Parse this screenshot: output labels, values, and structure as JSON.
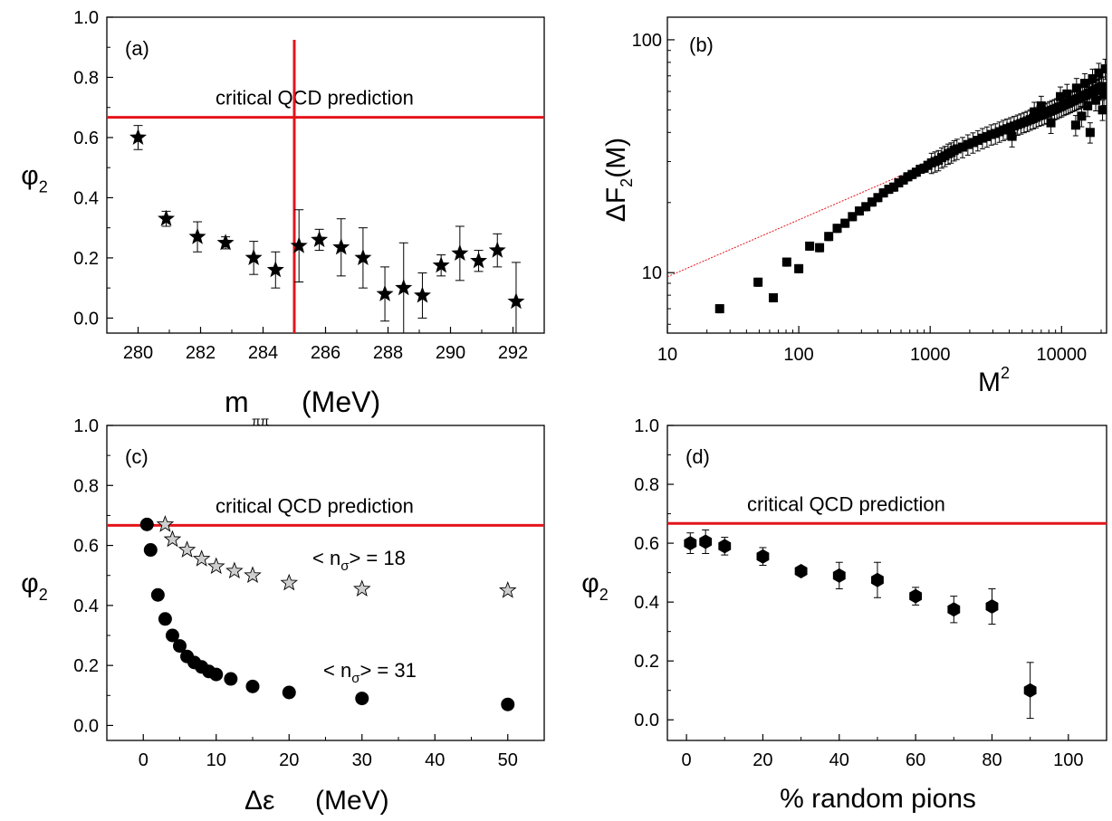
{
  "colors": {
    "critical_line": "#e4141b",
    "marker": "#000000",
    "open_star_fill": "#cfcfcf",
    "fit_line": "#e4141b"
  },
  "chart_data": [
    {
      "id": "a",
      "type": "scatter",
      "panel_label": "(a)",
      "xlabel_main": "m",
      "xlabel_sub": "ππ",
      "xlabel_unit": "(MeV)",
      "ylabel_main": "φ",
      "ylabel_sub": "2",
      "xlim": [
        279,
        293
      ],
      "ylim": [
        -0.05,
        1.0
      ],
      "xticks": [
        280,
        282,
        284,
        286,
        288,
        290,
        292
      ],
      "yticks": [
        0.0,
        0.2,
        0.4,
        0.6,
        0.8,
        1.0
      ],
      "ytick_labels": [
        "0.0",
        "0.2",
        "0.4",
        "0.6",
        "0.8",
        "1.0"
      ],
      "hline": {
        "y": 0.667,
        "label": "critical  QCD  prediction"
      },
      "vline": {
        "x": 285.0
      },
      "series": [
        {
          "marker": "star",
          "points": [
            {
              "x": 280.0,
              "y": 0.6,
              "err": 0.04
            },
            {
              "x": 280.9,
              "y": 0.33,
              "err": 0.025
            },
            {
              "x": 281.9,
              "y": 0.27,
              "err": 0.05
            },
            {
              "x": 282.8,
              "y": 0.25,
              "err": 0.02
            },
            {
              "x": 283.7,
              "y": 0.2,
              "err": 0.055
            },
            {
              "x": 284.4,
              "y": 0.16,
              "err": 0.06
            },
            {
              "x": 285.15,
              "y": 0.24,
              "err": 0.12
            },
            {
              "x": 285.8,
              "y": 0.26,
              "err": 0.035
            },
            {
              "x": 286.5,
              "y": 0.235,
              "err": 0.095
            },
            {
              "x": 287.2,
              "y": 0.2,
              "err": 0.1
            },
            {
              "x": 287.9,
              "y": 0.08,
              "err": 0.09
            },
            {
              "x": 288.5,
              "y": 0.1,
              "err": 0.15
            },
            {
              "x": 289.1,
              "y": 0.075,
              "err": 0.075
            },
            {
              "x": 289.7,
              "y": 0.175,
              "err": 0.035
            },
            {
              "x": 290.3,
              "y": 0.215,
              "err": 0.09
            },
            {
              "x": 290.9,
              "y": 0.19,
              "err": 0.035
            },
            {
              "x": 291.5,
              "y": 0.225,
              "err": 0.055
            },
            {
              "x": 292.1,
              "y": 0.055,
              "err": 0.13
            }
          ]
        }
      ]
    },
    {
      "id": "b",
      "type": "scatter",
      "scale": "log-log",
      "panel_label": "(b)",
      "xlabel_main": "M",
      "xlabel_sup": "2",
      "ylabel_main": "ΔF",
      "ylabel_sub": "2",
      "ylabel_tail": "(M)",
      "xlim": [
        10,
        22000
      ],
      "ylim": [
        5.5,
        125
      ],
      "xtick_labels": [
        "10",
        "100",
        "1000",
        "10000"
      ],
      "ytick_labels": [
        "10",
        "100"
      ],
      "fit_line": {
        "x": [
          10,
          22000
        ],
        "y": [
          9.6,
          63
        ]
      },
      "series": [
        {
          "marker": "square",
          "points": [
            {
              "x": 25,
              "y": 7.0
            },
            {
              "x": 49,
              "y": 9.1
            },
            {
              "x": 64,
              "y": 7.8
            },
            {
              "x": 81,
              "y": 11.1
            },
            {
              "x": 100,
              "y": 10.4
            },
            {
              "x": 121,
              "y": 13.0
            },
            {
              "x": 144,
              "y": 12.8
            },
            {
              "x": 169,
              "y": 14.3
            },
            {
              "x": 196,
              "y": 15.5
            },
            {
              "x": 225,
              "y": 16.3
            },
            {
              "x": 256,
              "y": 17.4
            },
            {
              "x": 289,
              "y": 18.4
            },
            {
              "x": 324,
              "y": 19.2
            },
            {
              "x": 361,
              "y": 20.1
            },
            {
              "x": 400,
              "y": 21.0
            },
            {
              "x": 441,
              "y": 22.0
            },
            {
              "x": 484,
              "y": 22.8
            },
            {
              "x": 529,
              "y": 23.3
            },
            {
              "x": 576,
              "y": 24.3
            },
            {
              "x": 625,
              "y": 25.0
            },
            {
              "x": 676,
              "y": 25.8
            },
            {
              "x": 729,
              "y": 26.4
            },
            {
              "x": 784,
              "y": 27.0
            },
            {
              "x": 841,
              "y": 27.8
            },
            {
              "x": 900,
              "y": 28.1
            },
            {
              "x": 961,
              "y": 28.9
            },
            {
              "x": 1024,
              "y": 29.6
            },
            {
              "x": 1089,
              "y": 30.0
            },
            {
              "x": 1156,
              "y": 30.4
            },
            {
              "x": 1225,
              "y": 31.2
            },
            {
              "x": 1296,
              "y": 31.7
            },
            {
              "x": 1369,
              "y": 32.4
            },
            {
              "x": 1444,
              "y": 32.8
            },
            {
              "x": 1521,
              "y": 33.5
            },
            {
              "x": 1600,
              "y": 34.0
            },
            {
              "x": 1764,
              "y": 34.6
            },
            {
              "x": 1936,
              "y": 35.5
            },
            {
              "x": 2116,
              "y": 36.2
            },
            {
              "x": 2304,
              "y": 37.0
            },
            {
              "x": 2500,
              "y": 37.8
            },
            {
              "x": 2704,
              "y": 38.4
            },
            {
              "x": 2916,
              "y": 39.2
            },
            {
              "x": 3136,
              "y": 39.6
            },
            {
              "x": 3364,
              "y": 40.3
            },
            {
              "x": 3600,
              "y": 41.0
            },
            {
              "x": 3844,
              "y": 41.5
            },
            {
              "x": 4096,
              "y": 42.1
            },
            {
              "x": 4356,
              "y": 42.6
            },
            {
              "x": 4624,
              "y": 43.2
            },
            {
              "x": 4900,
              "y": 43.7
            },
            {
              "x": 5184,
              "y": 44.3
            },
            {
              "x": 5476,
              "y": 44.8
            },
            {
              "x": 5776,
              "y": 45.4
            },
            {
              "x": 6084,
              "y": 46.0
            },
            {
              "x": 6400,
              "y": 46.5
            },
            {
              "x": 6724,
              "y": 47.2
            },
            {
              "x": 7056,
              "y": 47.6
            },
            {
              "x": 7396,
              "y": 48.2
            },
            {
              "x": 7744,
              "y": 48.6
            },
            {
              "x": 8100,
              "y": 49.3
            },
            {
              "x": 8464,
              "y": 49.8
            },
            {
              "x": 8836,
              "y": 50.3
            },
            {
              "x": 9216,
              "y": 50.8
            },
            {
              "x": 9604,
              "y": 51.4
            },
            {
              "x": 10000,
              "y": 51.8
            },
            {
              "x": 10404,
              "y": 52.5
            },
            {
              "x": 10816,
              "y": 53.0
            },
            {
              "x": 11236,
              "y": 53.4
            },
            {
              "x": 11664,
              "y": 54.0
            },
            {
              "x": 12100,
              "y": 54.6
            },
            {
              "x": 12544,
              "y": 55.0
            },
            {
              "x": 12996,
              "y": 55.6
            },
            {
              "x": 13456,
              "y": 56.0
            },
            {
              "x": 13924,
              "y": 56.6
            },
            {
              "x": 14400,
              "y": 57.0
            },
            {
              "x": 14884,
              "y": 57.6
            },
            {
              "x": 15376,
              "y": 58.0
            },
            {
              "x": 15876,
              "y": 58.6
            },
            {
              "x": 16384,
              "y": 59.0
            },
            {
              "x": 16900,
              "y": 59.6
            },
            {
              "x": 17424,
              "y": 60.0
            },
            {
              "x": 17956,
              "y": 60.6
            },
            {
              "x": 18496,
              "y": 61.0
            },
            {
              "x": 19044,
              "y": 61.6
            },
            {
              "x": 19600,
              "y": 62.0
            },
            {
              "x": 20164,
              "y": 62.6
            },
            {
              "x": 20736,
              "y": 63.0
            },
            {
              "x": 4200,
              "y": 38.5
            },
            {
              "x": 6200,
              "y": 49.0
            },
            {
              "x": 8300,
              "y": 44.0
            },
            {
              "x": 11000,
              "y": 58.5
            },
            {
              "x": 12800,
              "y": 43.0
            },
            {
              "x": 14200,
              "y": 47.0
            },
            {
              "x": 15000,
              "y": 65.0
            },
            {
              "x": 15800,
              "y": 52.0
            },
            {
              "x": 16500,
              "y": 40.0
            },
            {
              "x": 17200,
              "y": 68.0
            },
            {
              "x": 18200,
              "y": 55.0
            },
            {
              "x": 19200,
              "y": 72.0
            },
            {
              "x": 20500,
              "y": 50.0
            },
            {
              "x": 21500,
              "y": 75.0
            },
            {
              "x": 13000,
              "y": 62.0
            },
            {
              "x": 9800,
              "y": 57.0
            },
            {
              "x": 7000,
              "y": 52.0
            },
            {
              "x": 21000,
              "y": 58.0
            }
          ]
        }
      ]
    },
    {
      "id": "c",
      "type": "scatter",
      "panel_label": "(c)",
      "xlabel_main": "Δε",
      "xlabel_unit": "(MeV)",
      "ylabel_main": "φ",
      "ylabel_sub": "2",
      "xlim": [
        -5,
        55
      ],
      "ylim": [
        -0.05,
        1.0
      ],
      "xticks": [
        0,
        10,
        20,
        30,
        40,
        50
      ],
      "yticks": [
        0.0,
        0.2,
        0.4,
        0.6,
        0.8,
        1.0
      ],
      "ytick_labels": [
        "0.0",
        "0.2",
        "0.4",
        "0.6",
        "0.8",
        "1.0"
      ],
      "hline": {
        "y": 0.667,
        "label": "critical  QCD  prediction"
      },
      "annotations": [
        {
          "pre": "< n",
          "sub": "σ",
          "post": "> = 18"
        },
        {
          "pre": "< n",
          "sub": "σ",
          "post": "> = 31"
        }
      ],
      "series": [
        {
          "name_ref": "< nσ> = 18",
          "marker": "open-star",
          "points": [
            {
              "x": 3,
              "y": 0.67
            },
            {
              "x": 4,
              "y": 0.62
            },
            {
              "x": 6,
              "y": 0.585
            },
            {
              "x": 8,
              "y": 0.555
            },
            {
              "x": 10,
              "y": 0.53
            },
            {
              "x": 12.5,
              "y": 0.515
            },
            {
              "x": 15,
              "y": 0.5
            },
            {
              "x": 20,
              "y": 0.475
            },
            {
              "x": 30,
              "y": 0.455
            },
            {
              "x": 50,
              "y": 0.45
            }
          ]
        },
        {
          "name_ref": "< nσ> = 31",
          "marker": "circle",
          "points": [
            {
              "x": 0.5,
              "y": 0.67
            },
            {
              "x": 1,
              "y": 0.585
            },
            {
              "x": 2,
              "y": 0.435
            },
            {
              "x": 3,
              "y": 0.355
            },
            {
              "x": 4,
              "y": 0.3
            },
            {
              "x": 5,
              "y": 0.265
            },
            {
              "x": 6,
              "y": 0.23
            },
            {
              "x": 7,
              "y": 0.21
            },
            {
              "x": 8,
              "y": 0.195
            },
            {
              "x": 9,
              "y": 0.18
            },
            {
              "x": 10,
              "y": 0.17
            },
            {
              "x": 12,
              "y": 0.155
            },
            {
              "x": 15,
              "y": 0.13
            },
            {
              "x": 20,
              "y": 0.11
            },
            {
              "x": 30,
              "y": 0.09
            },
            {
              "x": 50,
              "y": 0.07
            }
          ]
        }
      ]
    },
    {
      "id": "d",
      "type": "scatter",
      "panel_label": "(d)",
      "xlabel_main": "% random pions",
      "ylabel_main": "φ",
      "ylabel_sub": "2",
      "xlim": [
        -5,
        110
      ],
      "ylim": [
        -0.07,
        1.0
      ],
      "xticks": [
        0,
        20,
        40,
        60,
        80,
        100
      ],
      "yticks": [
        0.0,
        0.2,
        0.4,
        0.6,
        0.8,
        1.0
      ],
      "ytick_labels": [
        "0.0",
        "0.2",
        "0.4",
        "0.6",
        "0.8",
        "1.0"
      ],
      "hline": {
        "y": 0.667,
        "label": "critical  QCD  prediction"
      },
      "series": [
        {
          "marker": "hexagon",
          "points": [
            {
              "x": 1,
              "y": 0.6,
              "err": 0.035
            },
            {
              "x": 5,
              "y": 0.605,
              "err": 0.04
            },
            {
              "x": 10,
              "y": 0.59,
              "err": 0.03
            },
            {
              "x": 20,
              "y": 0.555,
              "err": 0.03
            },
            {
              "x": 30,
              "y": 0.505,
              "err": 0.015
            },
            {
              "x": 40,
              "y": 0.49,
              "err": 0.045
            },
            {
              "x": 50,
              "y": 0.475,
              "err": 0.06
            },
            {
              "x": 60,
              "y": 0.42,
              "err": 0.03
            },
            {
              "x": 70,
              "y": 0.375,
              "err": 0.045
            },
            {
              "x": 80,
              "y": 0.385,
              "err": 0.06
            },
            {
              "x": 90,
              "y": 0.1,
              "err": 0.095
            }
          ]
        }
      ]
    }
  ]
}
